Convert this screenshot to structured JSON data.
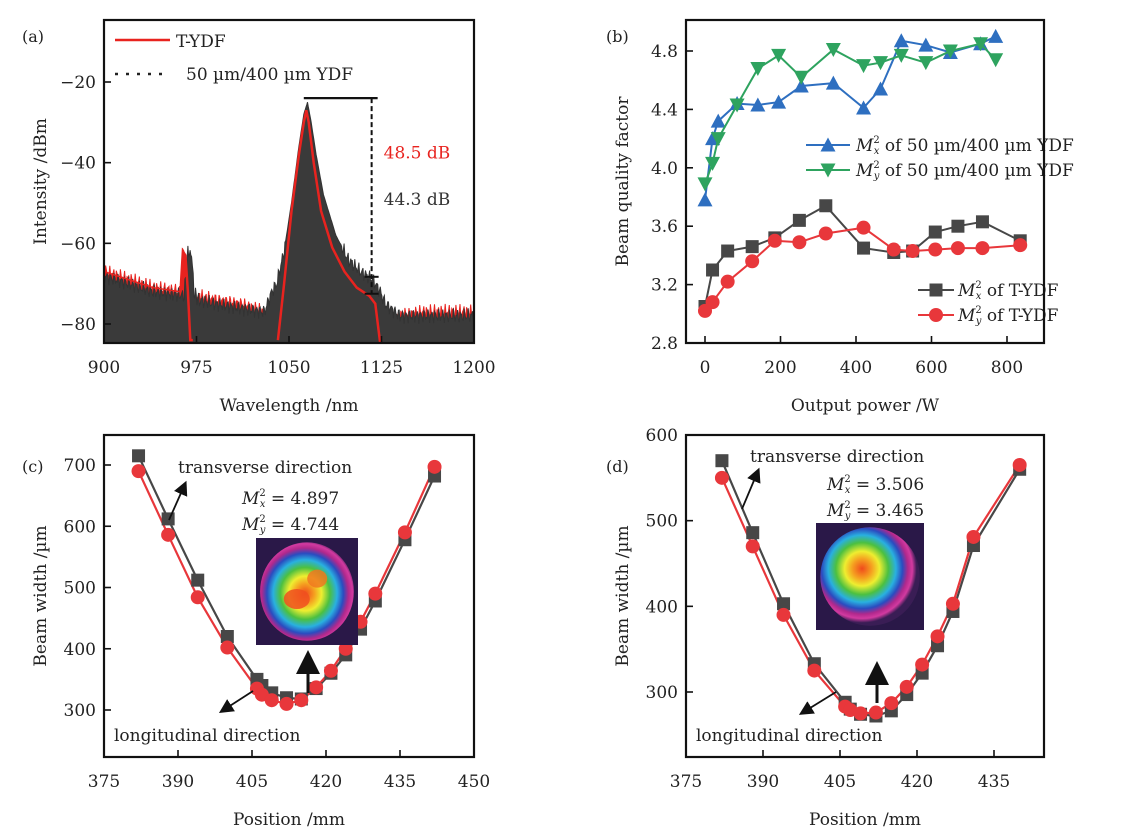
{
  "chart_data": [
    {
      "id": "a",
      "panel_label": "(a)",
      "type": "line",
      "xlabel": "Wavelength /nm",
      "ylabel": "Intensity /dBm",
      "xlim": [
        900,
        1200
      ],
      "ylim": [
        -85,
        -8
      ],
      "xticks": [
        900,
        975,
        1050,
        1125,
        1200
      ],
      "yticks": [
        -20,
        -40,
        -60,
        -80
      ],
      "ytick_labels": [
        "−20",
        "−40",
        "−60",
        "−80"
      ],
      "legend_position": "top-left",
      "series": [
        {
          "name": "T-YDF",
          "color": "#e8231f",
          "style": "solid",
          "x": [
            900,
            920,
            940,
            962,
            964,
            966,
            968,
            970,
            972,
            975,
            990,
            1010,
            1030,
            1038,
            1041,
            1046,
            1052,
            1058,
            1062,
            1064,
            1066,
            1070,
            1076,
            1085,
            1095,
            1105,
            1115,
            1120,
            1124,
            1126,
            1140,
            1160,
            1180,
            1200
          ],
          "y": [
            -67,
            -69,
            -71,
            -72,
            -62,
            -63,
            -72,
            -84,
            -84,
            -73,
            -74,
            -75,
            -77,
            -85,
            -84,
            -70,
            -52,
            -38,
            -30,
            -27,
            -30,
            -40,
            -52,
            -61,
            -67,
            -71,
            -73,
            -75,
            -85,
            -79,
            -78,
            -77,
            -77,
            -77
          ]
        },
        {
          "name": "50 µm/400 µm YDF",
          "color": "#333333",
          "style": "dotted",
          "x": [
            900,
            920,
            940,
            965,
            968,
            971,
            973,
            976,
            990,
            1010,
            1030,
            1036,
            1040,
            1046,
            1052,
            1058,
            1062,
            1065,
            1068,
            1072,
            1078,
            1088,
            1098,
            1108,
            1118,
            1124,
            1128,
            1140,
            1160,
            1180,
            1200
          ],
          "y": [
            -68,
            -70,
            -72,
            -73,
            -62,
            -63,
            -72,
            -74,
            -75,
            -76,
            -77,
            -72,
            -70,
            -62,
            -50,
            -36,
            -28,
            -25,
            -30,
            -38,
            -48,
            -58,
            -64,
            -67,
            -69,
            -72,
            -75,
            -78,
            -78,
            -78,
            -78
          ]
        }
      ],
      "annotations": [
        {
          "text": "48.5 dB",
          "color": "#e8231f"
        },
        {
          "text": "44.3 dB",
          "color": "#333333"
        }
      ],
      "snr_marker": {
        "peak_dbm": -24,
        "floor_ydf_dbm": -68.3,
        "floor_tydf_dbm": -72.5,
        "wavelength_nm": 1117
      }
    },
    {
      "id": "b",
      "panel_label": "(b)",
      "type": "line",
      "xlabel": "Output power /W",
      "ylabel": "Beam quality factor",
      "xlim": [
        -25,
        875
      ],
      "ylim": [
        2.8,
        5.0
      ],
      "xticks": [
        0,
        200,
        400,
        600,
        800
      ],
      "yticks": [
        2.8,
        3.2,
        3.6,
        4.0,
        4.4,
        4.8
      ],
      "ytick_labels": [
        "2.8",
        "3.2",
        "3.6",
        "4.0",
        "4.4",
        "4.8"
      ],
      "legend_position": "center-right",
      "series": [
        {
          "name": "M²x of 50 µm/400 µm YDF",
          "legend_M": "M",
          "legend_sub": "x",
          "legend_rest": " of 50 µm/400 µm YDF",
          "color": "#2e6fc0",
          "marker": "triangle-up",
          "x": [
            0,
            20,
            35,
            85,
            140,
            195,
            255,
            340,
            420,
            465,
            520,
            585,
            650,
            730,
            770
          ],
          "y": [
            3.78,
            4.2,
            4.32,
            4.44,
            4.43,
            4.45,
            4.56,
            4.58,
            4.41,
            4.54,
            4.87,
            4.84,
            4.79,
            4.85,
            4.9
          ]
        },
        {
          "name": "M²y of 50 µm/400 µm YDF",
          "legend_M": "M",
          "legend_sub": "y",
          "legend_rest": " of 50 µm/400 µm YDF",
          "color": "#2ea35f",
          "marker": "triangle-down",
          "x": [
            0,
            20,
            35,
            85,
            140,
            195,
            255,
            340,
            420,
            465,
            520,
            585,
            650,
            730,
            770
          ],
          "y": [
            3.89,
            4.03,
            4.2,
            4.43,
            4.68,
            4.77,
            4.62,
            4.81,
            4.7,
            4.72,
            4.77,
            4.72,
            4.8,
            4.85,
            4.74
          ]
        },
        {
          "name": "M²x of T-YDF",
          "legend_M": "M",
          "legend_sub": "x",
          "legend_rest": " of T-YDF",
          "color": "#474747",
          "marker": "square",
          "x": [
            0,
            20,
            60,
            125,
            185,
            250,
            320,
            420,
            500,
            550,
            610,
            670,
            735,
            835
          ],
          "y": [
            3.05,
            3.3,
            3.43,
            3.46,
            3.52,
            3.64,
            3.74,
            3.45,
            3.42,
            3.43,
            3.56,
            3.6,
            3.63,
            3.5
          ]
        },
        {
          "name": "M²y of T-YDF",
          "legend_M": "M",
          "legend_sub": "y",
          "legend_rest": " of T-YDF",
          "color": "#e8373b",
          "marker": "circle",
          "x": [
            0,
            20,
            60,
            125,
            185,
            250,
            320,
            420,
            500,
            550,
            610,
            670,
            735,
            835
          ],
          "y": [
            3.02,
            3.08,
            3.22,
            3.36,
            3.5,
            3.49,
            3.55,
            3.59,
            3.44,
            3.43,
            3.44,
            3.45,
            3.45,
            3.47
          ]
        }
      ]
    },
    {
      "id": "c",
      "panel_label": "(c)",
      "type": "line",
      "xlabel": "Position /mm",
      "ylabel": "Beam width /µm",
      "xlim": [
        375,
        450
      ],
      "ylim": [
        228,
        750
      ],
      "xticks": [
        375,
        390,
        405,
        420,
        435,
        450
      ],
      "yticks": [
        300,
        400,
        500,
        600,
        700
      ],
      "ytick_labels": [
        "300",
        "400",
        "500",
        "600",
        "700"
      ],
      "annotations": [
        {
          "text": "transverse direction"
        },
        {
          "text": "longitudinal direction"
        },
        {
          "mx_label": "M",
          "mx_sub": "x",
          "mx_value": "= 4.897"
        },
        {
          "my_label": "M",
          "my_sub": "y",
          "my_value": "= 4.744"
        }
      ],
      "inset": "beam profile with two bright lobes",
      "series": [
        {
          "name": "transverse direction",
          "color": "#474747",
          "marker": "square",
          "x": [
            382,
            388,
            394,
            400,
            406,
            407,
            409,
            412,
            415,
            418,
            421,
            424,
            427,
            430,
            436,
            442
          ],
          "y": [
            715,
            612,
            512,
            420,
            350,
            340,
            328,
            320,
            318,
            335,
            360,
            390,
            432,
            478,
            578,
            682
          ]
        },
        {
          "name": "longitudinal direction",
          "color": "#e8373b",
          "marker": "circle",
          "x": [
            382,
            388,
            394,
            400,
            406,
            407,
            409,
            412,
            415,
            418,
            421,
            424,
            427,
            430,
            436,
            442
          ],
          "y": [
            690,
            586,
            484,
            402,
            335,
            325,
            316,
            310,
            316,
            337,
            364,
            400,
            444,
            490,
            590,
            697
          ]
        }
      ]
    },
    {
      "id": "d",
      "panel_label": "(d)",
      "type": "line",
      "xlabel": "Position /mm",
      "ylabel": "Beam width /µm",
      "xlim": [
        375,
        445
      ],
      "ylim": [
        225,
        600
      ],
      "xticks": [
        375,
        390,
        405,
        420,
        435
      ],
      "yticks": [
        300,
        400,
        500,
        600
      ],
      "ytick_labels": [
        "300",
        "400",
        "500",
        "600"
      ],
      "annotations": [
        {
          "text": "transverse direction"
        },
        {
          "text": "longitudinal direction"
        },
        {
          "mx_label": "M",
          "mx_sub": "x",
          "mx_value": "= 3.506"
        },
        {
          "my_label": "M",
          "my_sub": "y",
          "my_value": "= 3.465"
        }
      ],
      "inset": "beam profile with single near-circular lobe",
      "series": [
        {
          "name": "transverse direction",
          "color": "#474747",
          "marker": "square",
          "x": [
            382,
            388,
            394,
            400,
            406,
            407,
            409,
            412,
            415,
            418,
            421,
            424,
            427,
            431,
            440
          ],
          "y": [
            570,
            486,
            403,
            333,
            288,
            280,
            274,
            272,
            278,
            297,
            322,
            354,
            394,
            471,
            560
          ]
        },
        {
          "name": "longitudinal direction",
          "color": "#e8373b",
          "marker": "circle",
          "x": [
            382,
            388,
            394,
            400,
            406,
            407,
            409,
            412,
            415,
            418,
            421,
            424,
            427,
            431,
            440
          ],
          "y": [
            550,
            470,
            390,
            325,
            283,
            279,
            275,
            276,
            287,
            306,
            332,
            365,
            403,
            481,
            565
          ]
        }
      ]
    }
  ]
}
